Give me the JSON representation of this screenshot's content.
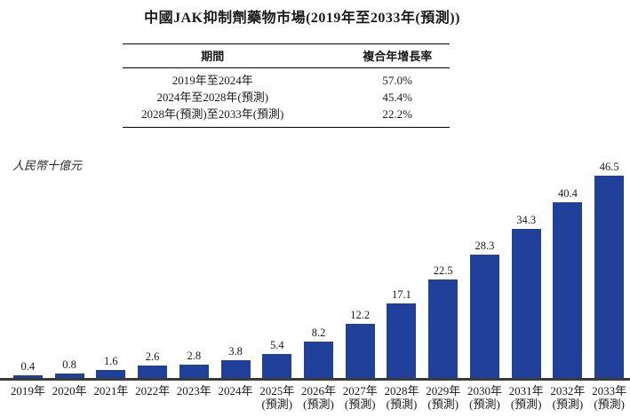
{
  "title": "中國JAK抑制劑藥物市場(2019年至2033年(預測))",
  "cagr_table": {
    "headers": [
      "期間",
      "複合年增長率"
    ],
    "rows": [
      {
        "period": "2019年至2024年",
        "cagr": "57.0%"
      },
      {
        "period": "2024年至2028年(預測)",
        "cagr": "45.4%"
      },
      {
        "period": "2028年(預測)至2033年(預測)",
        "cagr": "22.2%"
      }
    ]
  },
  "unit_label": "人民幣十億元",
  "chart_data": {
    "type": "bar",
    "title": "中國JAK抑制劑藥物市場(2019年至2033年(預測))",
    "ylabel": "人民幣十億元",
    "categories": [
      "2019年",
      "2020年",
      "2021年",
      "2022年",
      "2023年",
      "2024年",
      "2025年",
      "2026年",
      "2027年",
      "2028年",
      "2029年",
      "2030年",
      "2031年",
      "2032年",
      "2033年"
    ],
    "forecast_suffix": "(預測)",
    "forecast_start_index": 6,
    "values": [
      0.4,
      0.8,
      1.6,
      2.6,
      2.8,
      3.8,
      5.4,
      8.2,
      12.2,
      17.1,
      22.5,
      28.3,
      34.3,
      40.4,
      46.5
    ],
    "value_labels": [
      "0.4",
      "0.8",
      "1.6",
      "2.6",
      "2.8",
      "3.8",
      "5.4",
      "8.2",
      "12.2",
      "17.1",
      "22.5",
      "28.3",
      "34.3",
      "40.4",
      "46.5"
    ],
    "ylim": [
      0,
      47
    ],
    "grid": false,
    "legend": null,
    "bar_color": "#21409A",
    "axis_color": "#3B3B3B"
  }
}
